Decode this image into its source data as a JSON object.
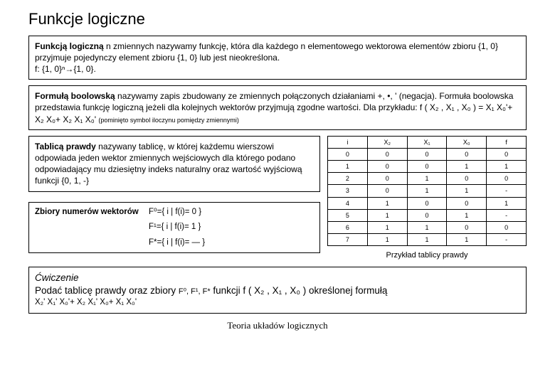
{
  "title": "Funkcje logiczne",
  "box1": {
    "line1a": "Funkcją logiczną",
    "line1b": " n zmiennych nazywamy funkcję, która dla każdego  n elementowego wektorowa elementów  zbioru {1, 0}  przyjmuje pojedynczy element zbioru {1, 0} lub jest nieokreślona.",
    "line2": "f: {1, 0}ⁿ→{1, 0}."
  },
  "box2": {
    "line1a": "Formułą boolowską",
    "line1b": " nazywamy zapis zbudowany ze zmiennych połączonych działaniami +, •, ' (negacja). Formuła boolowska przedstawia funkcję logiczną jeżeli dla kolejnych wektorów przyjmują zgodne wartości. Dla przykładu: f ( X₂ , X₁ , X₀ ) =  X₁ X₀'+ X₂ X₀+ X₂ X₁ X₀' ",
    "note": "(pominięto symbol iloczynu pomiędzy zmiennymi)"
  },
  "box3": {
    "text1a": "Tablicą prawdy",
    "text1b": " nazywany tablicę, w której każdemu wierszowi odpowiada jeden wektor zmiennych wejściowych dla którego podano odpowiadający mu dziesiętny indeks naturalny oraz wartość wyjściową funkcji {0, 1, -}"
  },
  "box4": {
    "label": "Zbiory numerów wektorów",
    "f0": "F⁰={ i | f(i)= 0 }",
    "f1": "F¹={ i | f(i)= 1 }",
    "fstar": "F*={ i | f(i)= — }"
  },
  "table": {
    "headers": [
      "i",
      "X₂",
      "X₁",
      "X₀",
      "f"
    ],
    "rows": [
      [
        "0",
        "0",
        "0",
        "0",
        "0"
      ],
      [
        "1",
        "0",
        "0",
        "1",
        "1"
      ],
      [
        "2",
        "0",
        "1",
        "0",
        "0"
      ],
      [
        "3",
        "0",
        "1",
        "1",
        "-"
      ],
      [
        "4",
        "1",
        "0",
        "0",
        "1"
      ],
      [
        "5",
        "1",
        "0",
        "1",
        "-"
      ],
      [
        "6",
        "1",
        "1",
        "0",
        "0"
      ],
      [
        "7",
        "1",
        "1",
        "1",
        "-"
      ]
    ],
    "caption": "Przykład tablicy prawdy"
  },
  "exercise": {
    "title": "Ćwiczenie",
    "line1a": "Podać tablicę prawdy oraz zbiory ",
    "line1b": "F⁰, F¹, F*",
    "line1c": " funkcji f ( X₂ , X₁ , X₀ ) określonej formułą",
    "formula": "X₂' X₁' X₀'+ X₂ X₁' X₀+ X₁ X₀'"
  },
  "footer": "Teoria układów logicznych"
}
